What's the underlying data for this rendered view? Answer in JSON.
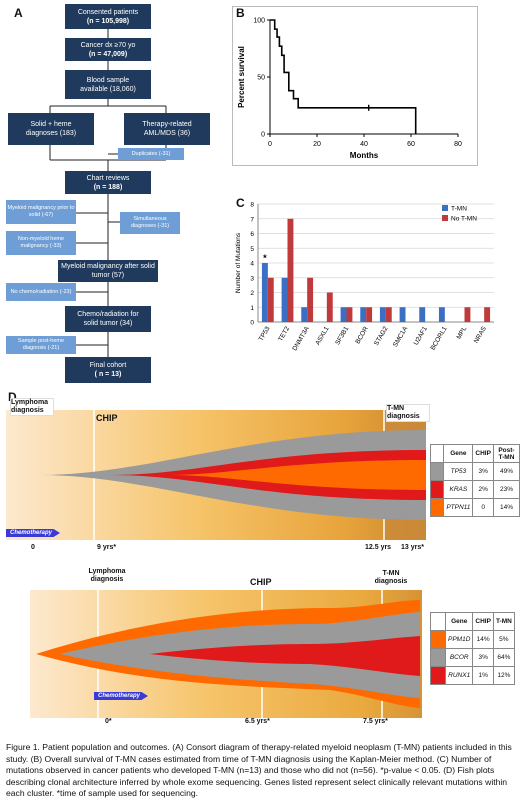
{
  "panel_a": {
    "letter": "A",
    "boxes": [
      {
        "title": "Consented  patients",
        "value": "(n = 105,998)"
      },
      {
        "title": "Cancer dx ≥70 yo",
        "value": "(n = 47,009)"
      },
      {
        "title": "Blood sample",
        "value": "available (18,060)"
      },
      {
        "title": "Solid + heme",
        "value": "diagnoses (183)"
      },
      {
        "title": "Therapy-related",
        "value": "AML/MDS  (36)"
      },
      {
        "title": "Chart reviews",
        "value": "(n = 188)"
      },
      {
        "title": "Myeloid malignancy after solid tumor (57)",
        "value": ""
      },
      {
        "title": "Chemo/radiation for",
        "value": "solid tumor (34)"
      },
      {
        "title": "Final  cohort",
        "value": "( n = 13)"
      }
    ],
    "side_boxes": [
      "Duplicates (-31)",
      "Myeloid malignancy prior to solid (-67)",
      "Simultaneous diagnoses (-31)",
      "Non-myeloid heme malignancy (-33)",
      "No chemo/radiation (-23)",
      "Sample post-heme diagnosis (-21)"
    ]
  },
  "panel_b": {
    "letter": "B",
    "chart_data": {
      "type": "line",
      "title": "",
      "xlabel": "Months",
      "ylabel": "Percent survival",
      "xlim": [
        0,
        80
      ],
      "ylim": [
        0,
        100
      ],
      "xticks": [
        0,
        20,
        40,
        60,
        80
      ],
      "yticks": [
        0,
        50,
        100
      ],
      "series": [
        {
          "x": [
            0,
            2,
            2,
            3,
            3,
            4,
            4,
            5,
            5,
            6,
            6,
            8,
            8,
            10,
            10,
            12,
            12,
            15,
            15,
            62,
            62
          ],
          "y": [
            100,
            100,
            92,
            92,
            85,
            85,
            77,
            77,
            69,
            69,
            54,
            54,
            38,
            38,
            31,
            31,
            23,
            23,
            23,
            23,
            0
          ]
        }
      ],
      "censor_marks": [
        {
          "x": 42,
          "y": 23
        }
      ],
      "grid": false
    }
  },
  "panel_c": {
    "letter": "C",
    "chart_data": {
      "type": "bar",
      "categories": [
        "TP53",
        "TET2",
        "DNMT3A",
        "ASXL1",
        "SF3B1",
        "BCOR",
        "STAG2",
        "SMC1A",
        "U2AF1",
        "BCORL1",
        "MPL",
        "NRAS"
      ],
      "series": [
        {
          "name": "T-MN",
          "color": "#3b6fc4",
          "values": [
            4,
            3,
            1,
            0,
            1,
            1,
            1,
            1,
            1,
            1,
            0,
            0
          ]
        },
        {
          "name": "No T-MN",
          "color": "#c0393b",
          "values": [
            3,
            7,
            3,
            2,
            1,
            1,
            1,
            0,
            0,
            0,
            1,
            1
          ]
        }
      ],
      "ylabel": "Number of Mutations",
      "xlabel": "",
      "ylim": [
        0,
        8
      ],
      "yticks": [
        0,
        1,
        2,
        3,
        4,
        5,
        6,
        7,
        8
      ],
      "annotations": [
        {
          "category": "TP53",
          "text": "*"
        }
      ],
      "legend": "top-right",
      "grid": true
    }
  },
  "panel_d": {
    "letter": "D",
    "top": {
      "left_label": "Lymphoma diagnosis",
      "chip_label": "CHIP",
      "tmn_label": "T-MN diagnosis",
      "chemo_label": "Chemotherapy",
      "times": [
        "0",
        "9 yrs*",
        "12.5 yrs",
        "13 yrs*"
      ],
      "table": {
        "headers": [
          "Gene",
          "CHIP",
          "Post-T-MN"
        ],
        "rows": [
          {
            "gene": "TP53",
            "chip": "3%",
            "post": "49%",
            "color": "#9a9a9a"
          },
          {
            "gene": "KRAS",
            "chip": "2%",
            "post": "23%",
            "color": "#e01a1a"
          },
          {
            "gene": "PTPN11",
            "chip": "0",
            "post": "14%",
            "color": "#ff6a00"
          }
        ]
      }
    },
    "bottom": {
      "left_label": "Lymphoma diagnosis",
      "chip_label": "CHIP",
      "tmn_label": "T-MN diagnosis",
      "chemo_label": "Chemotherapy",
      "times": [
        "0*",
        "6.5 yrs*",
        "7.5 yrs*"
      ],
      "table": {
        "headers": [
          "Gene",
          "CHIP",
          "T-MN"
        ],
        "rows": [
          {
            "gene": "PPM1D",
            "chip": "14%",
            "post": "5%",
            "color": "#ff6a00"
          },
          {
            "gene": "BCOR",
            "chip": "3%",
            "post": "64%",
            "color": "#9a9a9a"
          },
          {
            "gene": "RUNX1",
            "chip": "1%",
            "post": "12%",
            "color": "#e01a1a"
          }
        ]
      }
    }
  },
  "caption": "Figure 1. Patient population and outcomes. (A) Consort diagram of therapy-related myeloid neoplasm (T-MN) patients included in this study. (B) Overall survival of T-MN cases estimated from time of T-MN diagnosis using the Kaplan-Meier method. (C) Number of mutations observed in cancer patients who developed T-MN (n=13) and those who did not (n=56). *p-value < 0.05. (D) Fish plots describing clonal architecture inferred by whole exome sequencing. Genes listed represent select clinically relevant mutations within each cluster. *time of sample used for sequencing."
}
